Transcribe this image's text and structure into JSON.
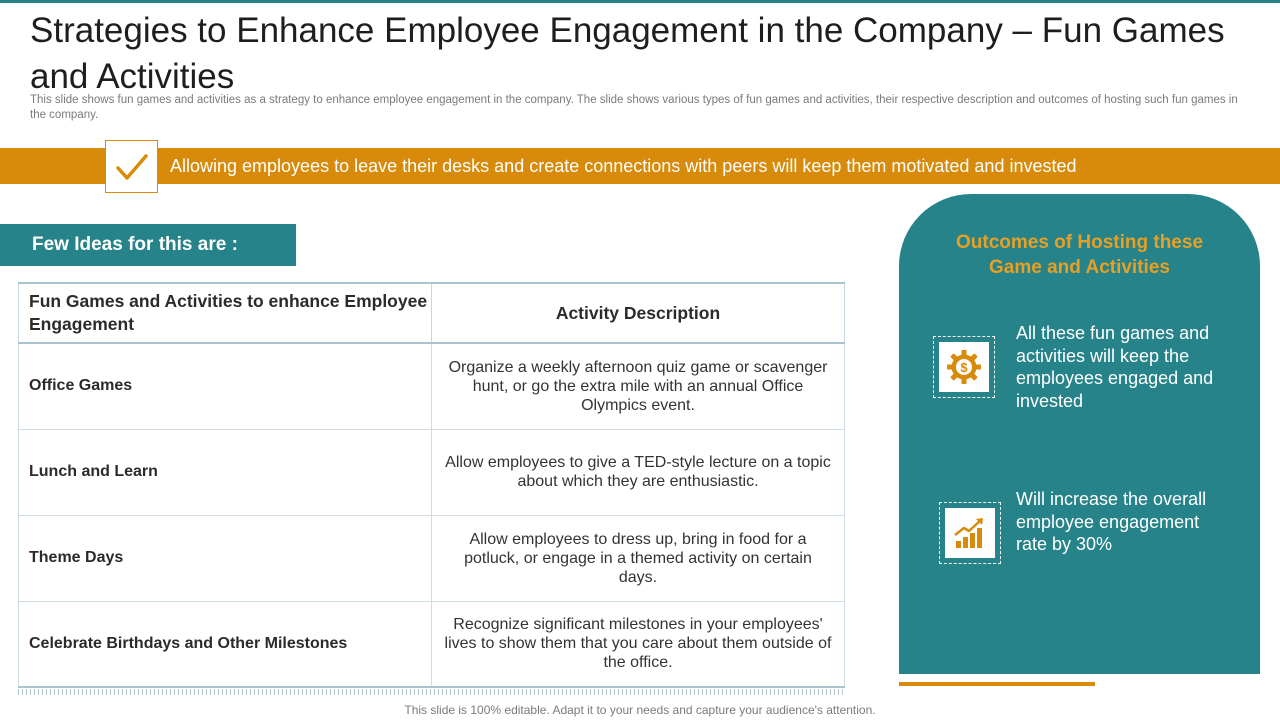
{
  "header": {
    "title": "Strategies to Enhance Employee Engagement in the Company – Fun Games and Activities",
    "subtitle": "This slide shows fun games and activities as a strategy to enhance employee engagement in the company. The slide shows various types of fun games and activities, their respective description and outcomes of hosting such fun games in the company."
  },
  "banner": {
    "icon": "checkmark-icon",
    "text": "Allowing employees to leave their desks and create connections with peers will keep them motivated and invested"
  },
  "ideas_label": "Few Ideas for this are :",
  "table": {
    "headers": [
      "Fun Games and Activities to enhance Employee Engagement",
      "Activity Description"
    ],
    "rows": [
      {
        "name": "Office Games",
        "description": "Organize a weekly afternoon quiz game or scavenger hunt, or go the extra mile with an annual Office Olympics event."
      },
      {
        "name": "Lunch and Learn",
        "description": "Allow employees to give a TED-style lecture on a topic about which they are enthusiastic."
      },
      {
        "name": "Theme Days",
        "description": "Allow employees to dress up, bring in food for a potluck, or engage in a themed activity on certain days."
      },
      {
        "name": "Celebrate Birthdays and Other Milestones",
        "description": "Recognize significant milestones in your employees' lives to show them that you care about them outside of the office."
      }
    ]
  },
  "outcomes": {
    "title": "Outcomes of Hosting these Game and Activities",
    "items": [
      {
        "icon": "dollar-gear-icon",
        "text": "All these fun games and activities will keep the employees engaged and invested"
      },
      {
        "icon": "growth-chart-icon",
        "text": "Will increase the overall employee engagement rate by 30%"
      }
    ]
  },
  "footer": "This slide is 100% editable. Adapt it to your needs and capture your audience's attention.",
  "colors": {
    "accent_orange": "#d88b0a",
    "teal": "#26838a",
    "outcome_title": "#e7a025"
  }
}
